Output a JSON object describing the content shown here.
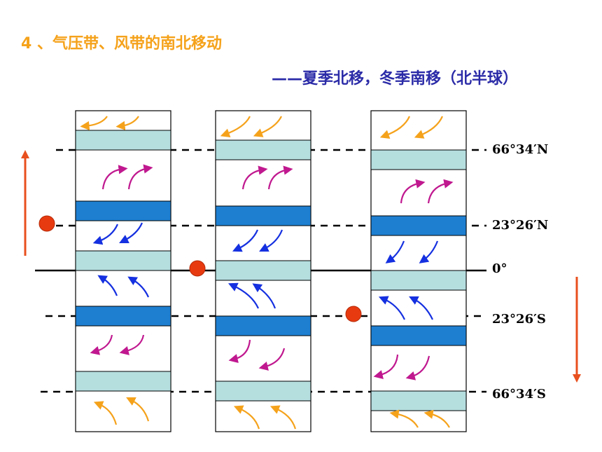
{
  "heading": "4 、气压带、风带的南北移动",
  "subheading": "——夏季北移，冬季南移（北半球）",
  "latitudes": {
    "n66": "66°34′N",
    "n23": "23°26′N",
    "eq": "0°",
    "s23": "23°26′S",
    "s66": "66°34′S"
  },
  "colors": {
    "subpolar_low_and_equatorial": "#B5DEDF",
    "subtropical_high": "#1E7FD1",
    "polar_easterlies": "#F5A21B",
    "westerlies": "#C0188F",
    "trade_winds": "#1530E0",
    "marker": "#E83A10",
    "migration_arrow": "#E8501E"
  }
}
